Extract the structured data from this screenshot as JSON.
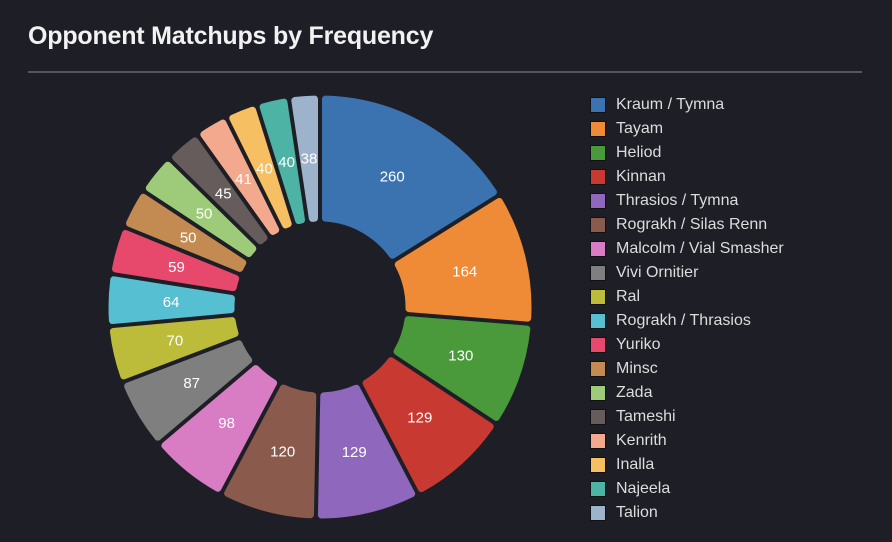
{
  "title": "Opponent Matchups by Frequency",
  "chart_data": {
    "type": "doughnut",
    "title": "Opponent Matchups by Frequency",
    "legend_position": "right",
    "start_angle": "top, clockwise",
    "categories": [
      "Kraum / Tymna",
      "Tayam",
      "Heliod",
      "Kinnan",
      "Thrasios / Tymna",
      "Rograkh / Silas Renn",
      "Malcolm / Vial Smasher",
      "Vivi Ornitier",
      "Ral",
      "Rograkh / Thrasios",
      "Yuriko",
      "Minsc",
      "Zada",
      "Tameshi",
      "Kenrith",
      "Inalla",
      "Najeela",
      "Talion"
    ],
    "values": [
      260,
      164,
      130,
      129,
      129,
      120,
      98,
      87,
      70,
      64,
      59,
      50,
      50,
      45,
      41,
      40,
      40,
      38
    ],
    "colors": [
      "#3b73b1",
      "#ef8a36",
      "#4a9a3c",
      "#c83a31",
      "#8f67bc",
      "#8a5a4c",
      "#d87cc4",
      "#7f7f7f",
      "#bcbc3a",
      "#56bfd1",
      "#e6496c",
      "#c38a52",
      "#9ecb7a",
      "#675c5c",
      "#f2a98e",
      "#f5bf62",
      "#4db4a5",
      "#9db3cb"
    ]
  }
}
